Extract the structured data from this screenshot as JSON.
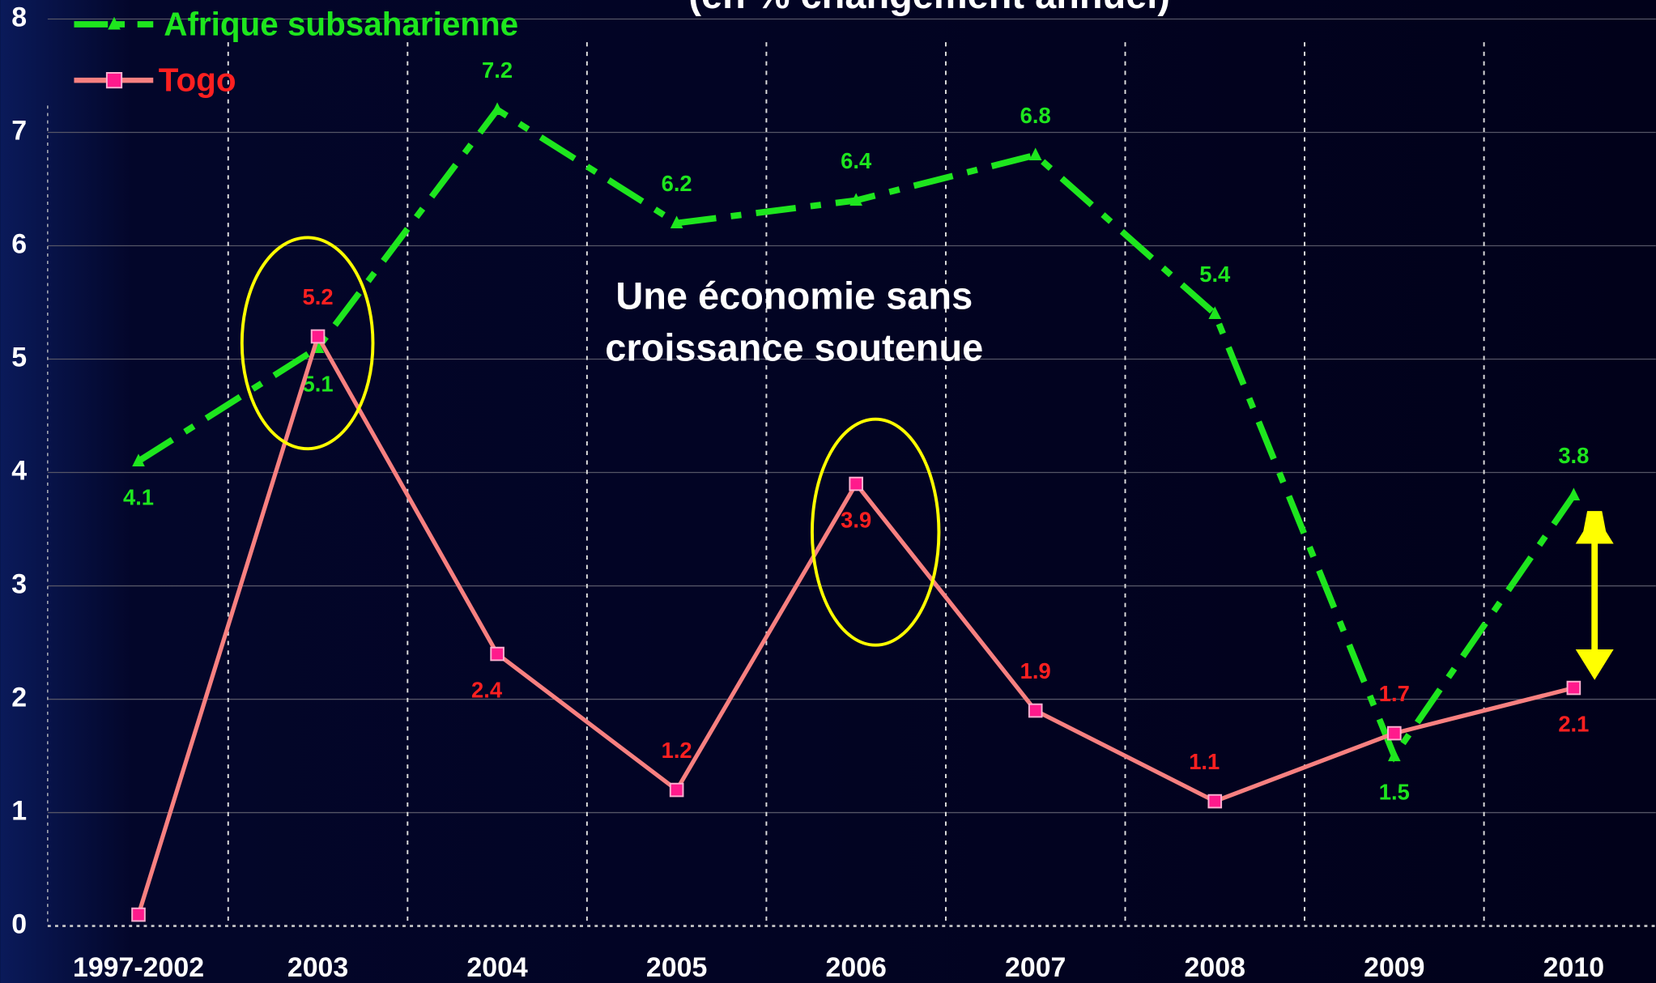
{
  "chart_data": {
    "type": "line",
    "title": "(en % changement annuel)",
    "annotation": [
      "Une économie sans",
      "croissance soutenue"
    ],
    "categories": [
      "1997-2002",
      "2003",
      "2004",
      "2005",
      "2006",
      "2007",
      "2008",
      "2009",
      "2010"
    ],
    "series": [
      {
        "name": "Afrique subsaharienne",
        "color": "#1ee61e",
        "values": [
          4.1,
          5.1,
          7.2,
          6.2,
          6.4,
          6.8,
          5.4,
          1.5,
          3.8
        ]
      },
      {
        "name": "Togo",
        "color": "#f88080",
        "marker_color": "#ff1a8c",
        "values": [
          0.1,
          5.2,
          2.4,
          1.2,
          3.9,
          1.9,
          1.1,
          1.7,
          2.1
        ],
        "value_labels": [
          null,
          5.2,
          2.4,
          1.2,
          3.9,
          1.9,
          1.1,
          1.7,
          2.1
        ]
      }
    ],
    "ylim": [
      0,
      8
    ],
    "yticks": [
      0,
      1,
      2,
      3,
      4,
      5,
      6,
      7,
      8
    ],
    "grid": true,
    "legend": "top-left"
  }
}
